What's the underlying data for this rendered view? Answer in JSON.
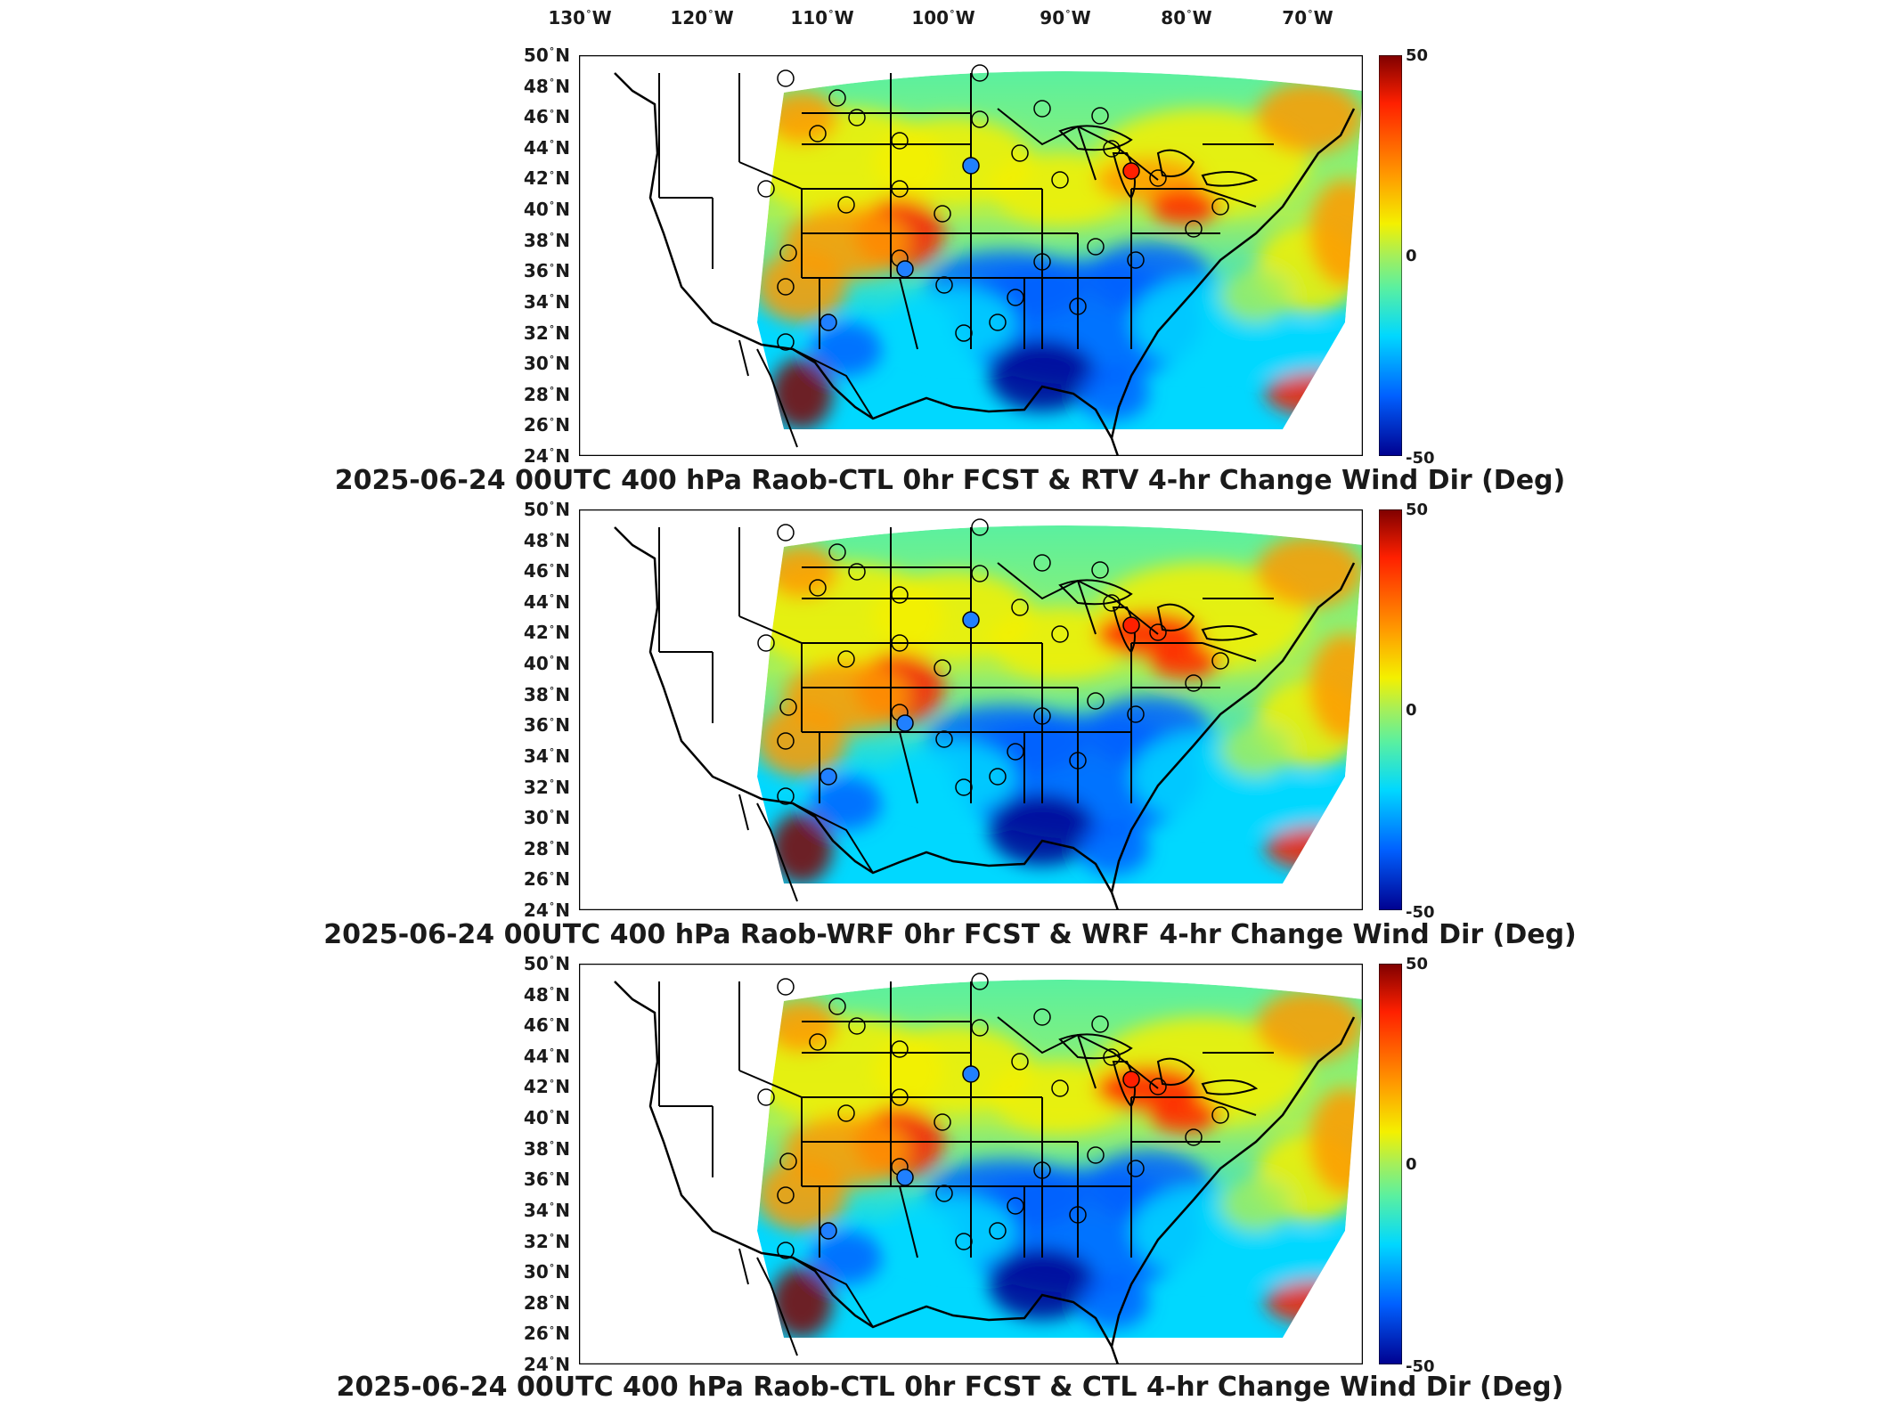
{
  "lon_axis": [
    "130",
    "120",
    "110",
    "100",
    "90",
    "80",
    "70"
  ],
  "lon_hemisphere": "W",
  "lat_labels": [
    "50",
    "48",
    "46",
    "44",
    "42",
    "40",
    "38",
    "36",
    "34",
    "32",
    "30",
    "28",
    "26",
    "24"
  ],
  "lat_hemisphere": "N",
  "degree_symbol": "°",
  "colorbar": {
    "max_label": "50",
    "mid_label": "0",
    "min_label": "-50",
    "range": [
      -50,
      50
    ],
    "colormap": "jet"
  },
  "colors": {
    "dark_red": "#7f0000",
    "red": "#ff2000",
    "orange": "#ff9a00",
    "yellow": "#f4f000",
    "light_green": "#a5ef5a",
    "green": "#5af0a0",
    "cyan": "#00d8ff",
    "blue": "#0060ff",
    "dark_blue": "#00008f",
    "outline": "#000000"
  },
  "panels": [
    {
      "title": "2025-06-24 00UTC 400 hPa Raob-CTL 0hr FCST & RTV 4-hr Change Wind Dir (Deg)"
    },
    {
      "title": "2025-06-24 00UTC 400 hPa Raob-WRF 0hr FCST & WRF 4-hr Change Wind Dir (Deg)"
    },
    {
      "title": "2025-06-24 00UTC 400 hPa Raob-CTL 0hr FCST & CTL 4-hr Change Wind Dir (Deg)"
    }
  ],
  "raob_stations": [
    {
      "name": "open",
      "color": "none"
    },
    {
      "name": "open",
      "color": "none"
    },
    {
      "name": "open",
      "color": "none"
    },
    {
      "name": "blue",
      "color": "#2080ff"
    },
    {
      "name": "red",
      "color": "#ff2000"
    }
  ]
}
